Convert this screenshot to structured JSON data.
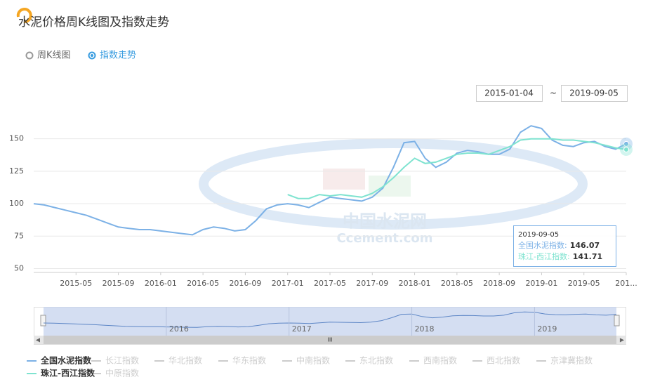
{
  "chart_data": {
    "type": "line",
    "title": "水泥价格周K线图及指数走势",
    "view_options": [
      "周K线图",
      "指数走势"
    ],
    "selected_view": 1,
    "date_range": {
      "start": "2015-01-04",
      "separator": "~",
      "end": "2019-09-05"
    },
    "x": [
      "2015-01",
      "2015-02",
      "2015-03",
      "2015-04",
      "2015-05",
      "2015-06",
      "2015-07",
      "2015-08",
      "2015-09",
      "2015-10",
      "2015-11",
      "2015-12",
      "2016-01",
      "2016-02",
      "2016-03",
      "2016-04",
      "2016-05",
      "2016-06",
      "2016-07",
      "2016-08",
      "2016-09",
      "2016-10",
      "2016-11",
      "2016-12",
      "2017-01",
      "2017-02",
      "2017-03",
      "2017-04",
      "2017-05",
      "2017-06",
      "2017-07",
      "2017-08",
      "2017-09",
      "2017-10",
      "2017-11",
      "2017-12",
      "2018-01",
      "2018-02",
      "2018-03",
      "2018-04",
      "2018-05",
      "2018-06",
      "2018-07",
      "2018-08",
      "2018-09",
      "2018-10",
      "2018-11",
      "2018-12",
      "2019-01",
      "2019-02",
      "2019-03",
      "2019-04",
      "2019-05",
      "2019-06",
      "2019-07",
      "2019-08",
      "2019-09"
    ],
    "xlim": [
      "2015-01",
      "2019-09"
    ],
    "xticks": [
      "2015-05",
      "2015-09",
      "2016-01",
      "2016-05",
      "2016-09",
      "2017-01",
      "2017-05",
      "2017-09",
      "2018-01",
      "2018-05",
      "2018-09",
      "2019-01",
      "2019-05",
      {
        "value": "2019-09",
        "label": "201..."
      }
    ],
    "ylim": [
      47,
      172
    ],
    "yticks": [
      50,
      75,
      100,
      125,
      150
    ],
    "grid": true,
    "series": [
      {
        "name": "全国水泥指数",
        "color": "#7cb1e6",
        "values": [
          100,
          99,
          97,
          95,
          93,
          91,
          88,
          85,
          82,
          81,
          80,
          80,
          79,
          78,
          77,
          76,
          80,
          82,
          81,
          79,
          80,
          87,
          96,
          99,
          100,
          99,
          97,
          101,
          105,
          104,
          103,
          102,
          105,
          112,
          128,
          147,
          148,
          135,
          128,
          132,
          139,
          141,
          140,
          138,
          138,
          142,
          155,
          160,
          158,
          149,
          145,
          144,
          147,
          148,
          144,
          142,
          146.07
        ]
      },
      {
        "name": "珠江-西江指数",
        "color": "#7fe3d0",
        "values": [
          null,
          null,
          null,
          null,
          null,
          null,
          null,
          null,
          null,
          null,
          null,
          null,
          null,
          null,
          null,
          null,
          null,
          null,
          null,
          null,
          null,
          null,
          null,
          null,
          107,
          104,
          104,
          107,
          106,
          107,
          106,
          105,
          108,
          113,
          120,
          128,
          135,
          131,
          132,
          135,
          138,
          139,
          139,
          138,
          141,
          144,
          149,
          150,
          150,
          150,
          149,
          149,
          148,
          147,
          145,
          143,
          141.71
        ]
      }
    ],
    "hidden_series": [
      "长江指数",
      "华北指数",
      "华东指数",
      "中南指数",
      "东北指数",
      "西南指数",
      "西北指数",
      "京津冀指数",
      "中原指数"
    ],
    "tooltip": {
      "date": "2019-09-05",
      "labels": [
        "全国水泥指数:",
        "珠江-西江指数:"
      ]
    },
    "navigator": {
      "labels": [
        {
          "value": "2016-01",
          "label": "2016"
        },
        {
          "value": "2017-01",
          "label": "2017"
        },
        {
          "value": "2018-01",
          "label": "2018"
        },
        {
          "value": "2019-01",
          "label": "2019"
        }
      ]
    },
    "watermark": [
      "中国水泥网",
      "Ccement.com"
    ]
  }
}
